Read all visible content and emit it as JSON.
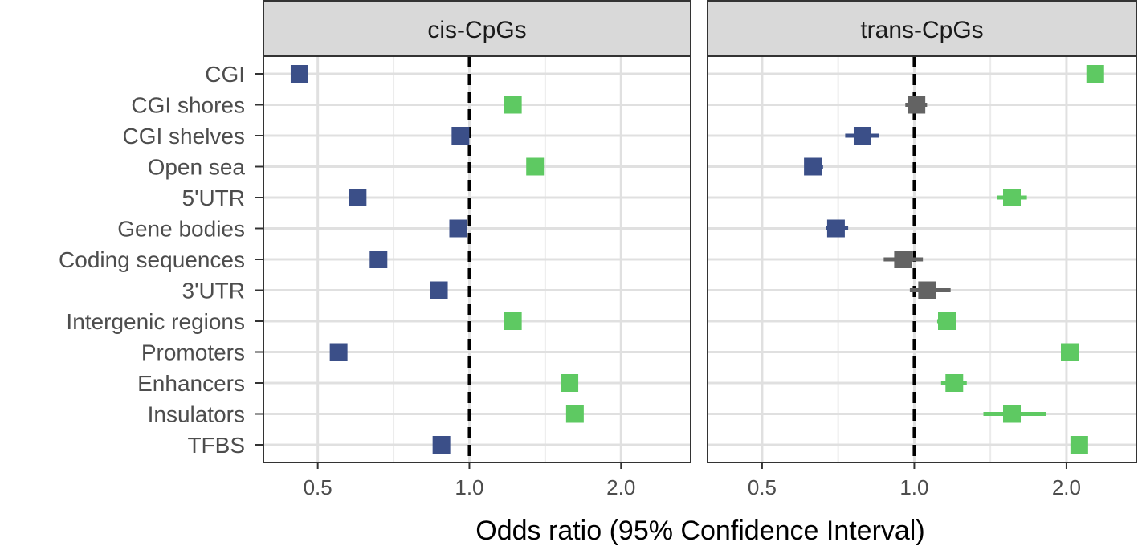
{
  "chart_data": {
    "type": "scatter",
    "subtype": "forest-plot",
    "xlabel": "Odds ratio (95% Confidence Interval)",
    "x_scale": "log2",
    "xlim": [
      0.39,
      2.75
    ],
    "x_ticks": [
      0.5,
      1.0,
      2.0
    ],
    "x_tick_labels": [
      "0.5",
      "1.0",
      "2.0"
    ],
    "reference_line": 1.0,
    "grid": true,
    "legend": "none",
    "categories": [
      "CGI",
      "CGI shores",
      "CGI shelves",
      "Open sea",
      "5'UTR",
      "Gene bodies",
      "Coding sequences",
      "3'UTR",
      "Intergenic regions",
      "Promoters",
      "Enhancers",
      "Insulators",
      "TFBS"
    ],
    "colors": {
      "depleted": "#3b4f88",
      "enriched": "#5ec962",
      "not_significant": "#636363"
    },
    "panels": [
      {
        "name": "cis-CpGs",
        "series": [
          {
            "category": "CGI",
            "or": 0.46,
            "lo": 0.46,
            "hi": 0.46,
            "status": "depleted"
          },
          {
            "category": "CGI shores",
            "or": 1.22,
            "lo": 1.22,
            "hi": 1.22,
            "status": "enriched"
          },
          {
            "category": "CGI shelves",
            "or": 0.96,
            "lo": 0.96,
            "hi": 0.96,
            "status": "depleted"
          },
          {
            "category": "Open sea",
            "or": 1.35,
            "lo": 1.35,
            "hi": 1.35,
            "status": "enriched"
          },
          {
            "category": "5'UTR",
            "or": 0.6,
            "lo": 0.6,
            "hi": 0.6,
            "status": "depleted"
          },
          {
            "category": "Gene bodies",
            "or": 0.95,
            "lo": 0.95,
            "hi": 0.95,
            "status": "depleted"
          },
          {
            "category": "Coding sequences",
            "or": 0.66,
            "lo": 0.66,
            "hi": 0.66,
            "status": "depleted"
          },
          {
            "category": "3'UTR",
            "or": 0.87,
            "lo": 0.87,
            "hi": 0.87,
            "status": "depleted"
          },
          {
            "category": "Intergenic regions",
            "or": 1.22,
            "lo": 1.22,
            "hi": 1.22,
            "status": "enriched"
          },
          {
            "category": "Promoters",
            "or": 0.55,
            "lo": 0.55,
            "hi": 0.55,
            "status": "depleted"
          },
          {
            "category": "Enhancers",
            "or": 1.58,
            "lo": 1.58,
            "hi": 1.58,
            "status": "enriched"
          },
          {
            "category": "Insulators",
            "or": 1.62,
            "lo": 1.62,
            "hi": 1.62,
            "status": "enriched"
          },
          {
            "category": "TFBS",
            "or": 0.88,
            "lo": 0.88,
            "hi": 0.88,
            "status": "depleted"
          }
        ]
      },
      {
        "name": "trans-CpGs",
        "series": [
          {
            "category": "CGI",
            "or": 2.28,
            "lo": 2.2,
            "hi": 2.36,
            "status": "enriched"
          },
          {
            "category": "CGI shores",
            "or": 1.01,
            "lo": 0.96,
            "hi": 1.06,
            "status": "not_significant"
          },
          {
            "category": "CGI shelves",
            "or": 0.79,
            "lo": 0.73,
            "hi": 0.85,
            "status": "depleted"
          },
          {
            "category": "Open sea",
            "or": 0.63,
            "lo": 0.61,
            "hi": 0.66,
            "status": "depleted"
          },
          {
            "category": "5'UTR",
            "or": 1.56,
            "lo": 1.46,
            "hi": 1.67,
            "status": "enriched"
          },
          {
            "category": "Gene bodies",
            "or": 0.7,
            "lo": 0.67,
            "hi": 0.74,
            "status": "depleted"
          },
          {
            "category": "Coding sequences",
            "or": 0.95,
            "lo": 0.87,
            "hi": 1.04,
            "status": "not_significant"
          },
          {
            "category": "3'UTR",
            "or": 1.06,
            "lo": 0.98,
            "hi": 1.18,
            "status": "not_significant"
          },
          {
            "category": "Intergenic regions",
            "or": 1.16,
            "lo": 1.11,
            "hi": 1.21,
            "status": "enriched"
          },
          {
            "category": "Promoters",
            "or": 2.03,
            "lo": 1.95,
            "hi": 2.11,
            "status": "enriched"
          },
          {
            "category": "Enhancers",
            "or": 1.2,
            "lo": 1.13,
            "hi": 1.27,
            "status": "enriched"
          },
          {
            "category": "Insulators",
            "or": 1.56,
            "lo": 1.37,
            "hi": 1.82,
            "status": "enriched"
          },
          {
            "category": "TFBS",
            "or": 2.12,
            "lo": 2.05,
            "hi": 2.2,
            "status": "enriched"
          }
        ]
      }
    ]
  }
}
